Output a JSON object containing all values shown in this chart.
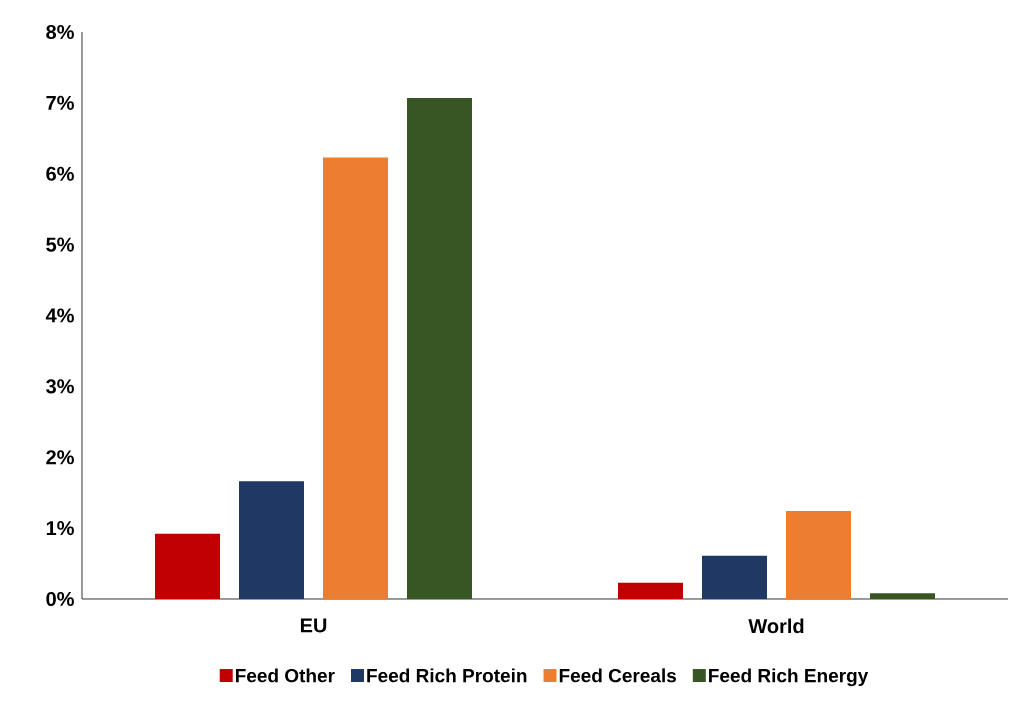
{
  "chart_data": {
    "type": "bar",
    "categories": [
      "EU",
      "World"
    ],
    "series": [
      {
        "name": "Feed Other",
        "color": "#c00000",
        "values": [
          0.92,
          0.23
        ]
      },
      {
        "name": "Feed Rich Protein",
        "color": "#203864",
        "values": [
          1.66,
          0.61
        ]
      },
      {
        "name": "Feed Cereals",
        "color": "#ed7d31",
        "values": [
          6.23,
          1.24
        ]
      },
      {
        "name": "Feed Rich Energy",
        "color": "#375623",
        "values": [
          7.07,
          0.08
        ]
      }
    ],
    "ylim": [
      0,
      8
    ],
    "yticks": [
      {
        "value": 0,
        "label": "0%"
      },
      {
        "value": 1,
        "label": "1%"
      },
      {
        "value": 2,
        "label": "2%"
      },
      {
        "value": 3,
        "label": "3%"
      },
      {
        "value": 4,
        "label": "4%"
      },
      {
        "value": 5,
        "label": "5%"
      },
      {
        "value": 6,
        "label": "6%"
      },
      {
        "value": 7,
        "label": "7%"
      },
      {
        "value": 8,
        "label": "8%"
      }
    ],
    "legend": "bottom"
  }
}
